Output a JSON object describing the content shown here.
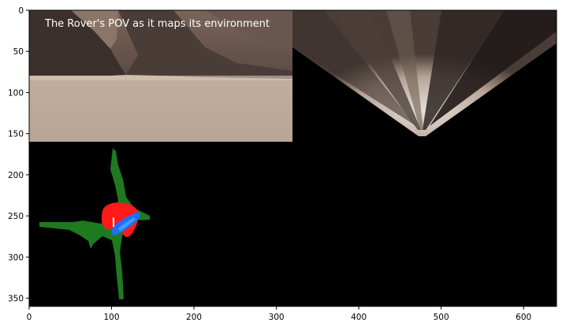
{
  "figure": {
    "caption": "The Rover's POV as it maps its environment"
  },
  "chart_data": {
    "type": "image",
    "xlim": [
      0,
      640
    ],
    "ylim": [
      360,
      0
    ],
    "xticks": [
      0,
      100,
      200,
      300,
      400,
      500,
      600
    ],
    "yticks": [
      0,
      50,
      100,
      150,
      200,
      250,
      300,
      350
    ],
    "xtick_labels": [
      "0",
      "100",
      "200",
      "300",
      "400",
      "500",
      "600"
    ],
    "ytick_labels": [
      "0",
      "50",
      "100",
      "150",
      "200",
      "250",
      "300",
      "350"
    ],
    "grid": false,
    "panels": [
      {
        "name": "camera-view",
        "extent_x": [
          0,
          320
        ],
        "extent_y": [
          0,
          160
        ]
      },
      {
        "name": "warped-view",
        "extent_x": [
          320,
          640
        ],
        "extent_y": [
          0,
          160
        ]
      },
      {
        "name": "world-map",
        "extent_x": [
          0,
          640
        ],
        "extent_y": [
          160,
          360
        ]
      }
    ],
    "colors": {
      "navigable": "#1f7a1f",
      "obstacle": "#ff1a1a",
      "rover_path": "#1e6fff",
      "sky": "#000000"
    }
  }
}
